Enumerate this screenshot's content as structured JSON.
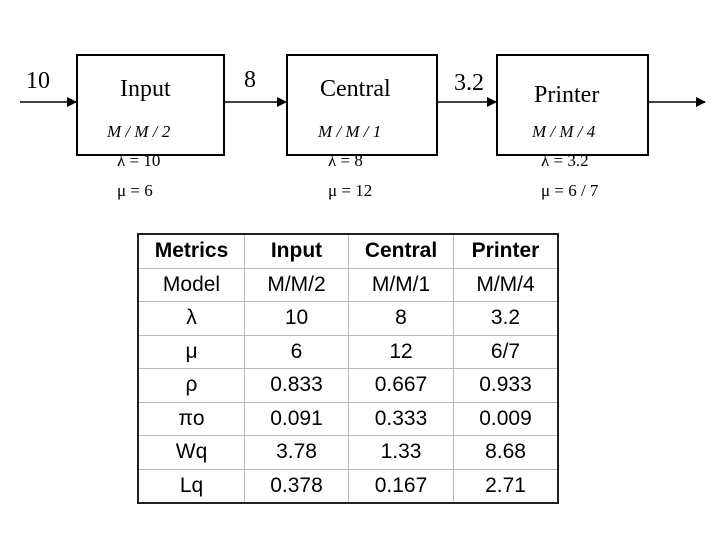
{
  "arrival": {
    "rate": "10"
  },
  "nodes": [
    {
      "name": "Input",
      "model": "M / M / 2",
      "lambda_text": "λ = 10",
      "mu_text": "μ = 6",
      "out_rate": "8"
    },
    {
      "name": "Central",
      "model": "M / M / 1",
      "lambda_text": "λ = 8",
      "mu_text": "μ = 12",
      "out_rate": "3.2"
    },
    {
      "name": "Printer",
      "model": "M / M / 4",
      "lambda_text": "λ = 3.2",
      "mu_text": "μ = 6 / 7",
      "out_rate": ""
    }
  ],
  "table": {
    "headers": [
      "Metrics",
      "Input",
      "Central",
      "Printer"
    ],
    "rows": [
      [
        "Model",
        "M/M/2",
        "M/M/1",
        "M/M/4"
      ],
      [
        "λ",
        "10",
        "8",
        "3.2"
      ],
      [
        "μ",
        "6",
        "12",
        "6/7"
      ],
      [
        "ρ",
        "0.833",
        "0.667",
        "0.933"
      ],
      [
        "πo",
        "0.091",
        "0.333",
        "0.009"
      ],
      [
        "Wq",
        "3.78",
        "1.33",
        "8.68"
      ],
      [
        "Lq",
        "0.378",
        "0.167",
        "2.71"
      ]
    ]
  }
}
